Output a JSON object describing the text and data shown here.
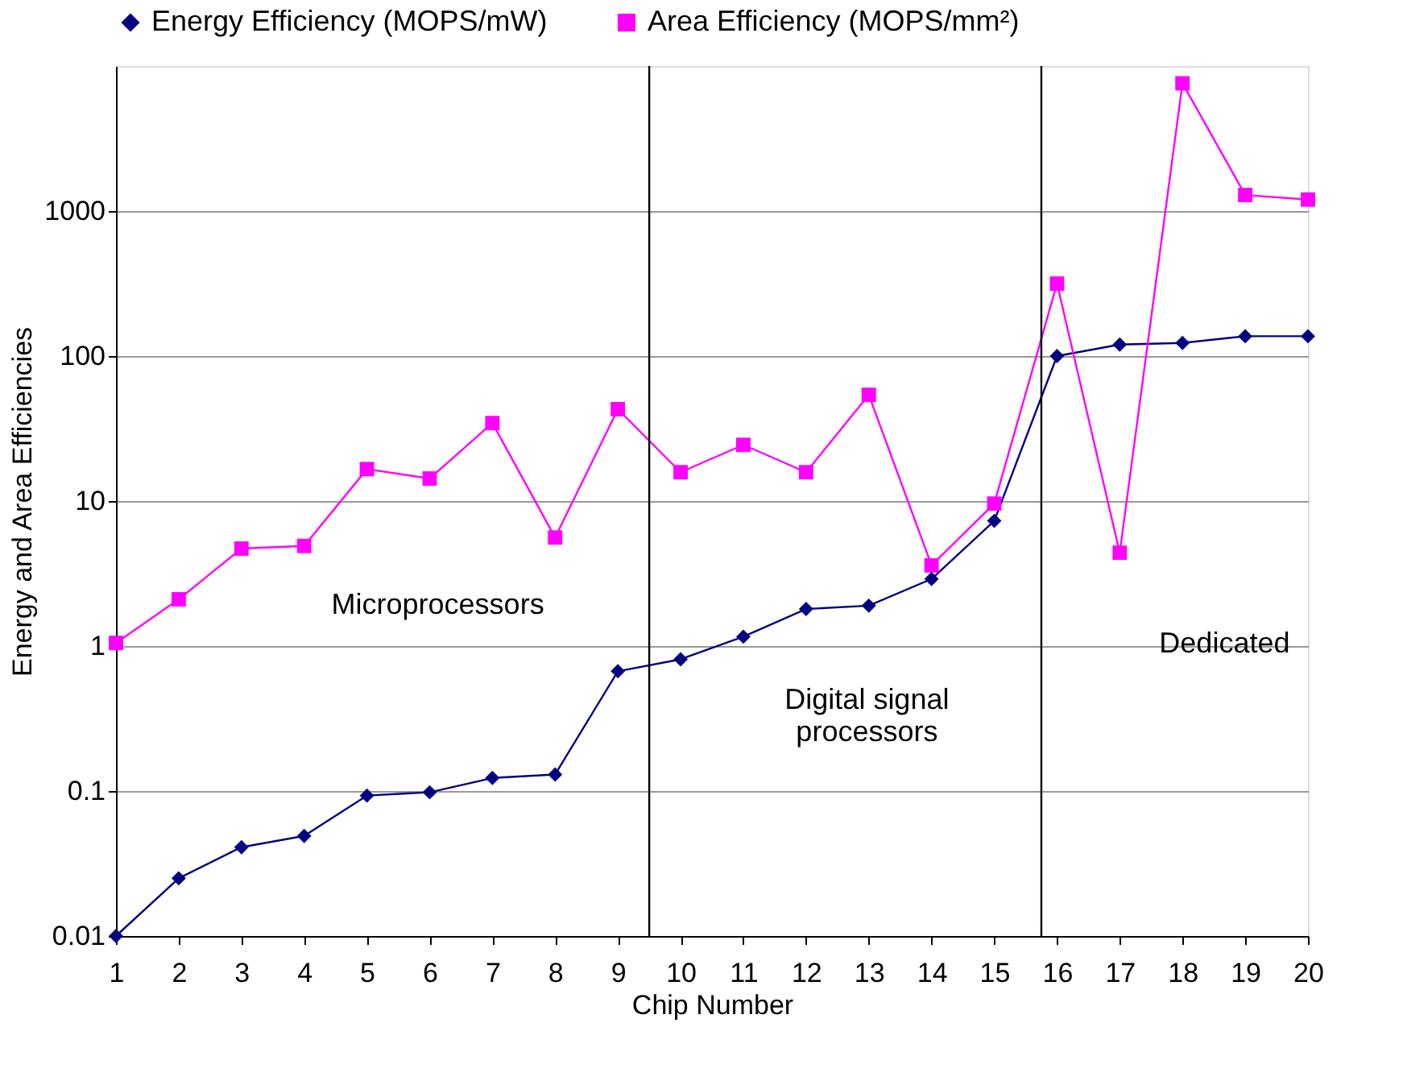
{
  "chart_data": {
    "type": "line",
    "xlabel": "Chip Number",
    "ylabel": "Energy and Area Efficiencies",
    "x": [
      1,
      2,
      3,
      4,
      5,
      6,
      7,
      8,
      9,
      10,
      11,
      12,
      13,
      14,
      15,
      16,
      17,
      18,
      19,
      20
    ],
    "series": [
      {
        "name": "Energy Efficiency (MOPS/mW)",
        "color": "#000080",
        "marker": "diamond",
        "values": [
          0.01,
          0.025,
          0.041,
          0.049,
          0.093,
          0.098,
          0.123,
          0.13,
          0.67,
          0.81,
          1.16,
          1.8,
          1.9,
          2.9,
          7.3,
          100,
          120,
          123,
          137,
          137
        ]
      },
      {
        "name": "Area Efficiency (MOPS/mm²)",
        "color": "#ff00ff",
        "marker": "square",
        "values": [
          1.05,
          2.1,
          4.7,
          4.9,
          16.6,
          14.3,
          34.5,
          5.6,
          43,
          15.8,
          24.4,
          15.8,
          54,
          3.6,
          9.6,
          316,
          4.4,
          7600,
          1290,
          1200
        ]
      }
    ],
    "log": "y",
    "xlim": [
      1,
      20
    ],
    "xticks": [
      1,
      2,
      3,
      4,
      5,
      6,
      7,
      8,
      9,
      10,
      11,
      12,
      13,
      14,
      15,
      16,
      17,
      18,
      19,
      20
    ],
    "ylim": [
      0.01,
      10000
    ],
    "yticks": [
      0.01,
      0.1,
      1,
      10,
      100,
      1000
    ],
    "grid": "y",
    "legend": "top",
    "line_style": "solid",
    "ref_lines": [
      {
        "axis": "x",
        "value": 9.5,
        "color": "#000000"
      },
      {
        "axis": "x",
        "value": 15.75,
        "color": "#000000"
      }
    ],
    "annotations": [
      "Microprocessors",
      "Digital signal\nprocessors",
      "Dedicated"
    ]
  }
}
